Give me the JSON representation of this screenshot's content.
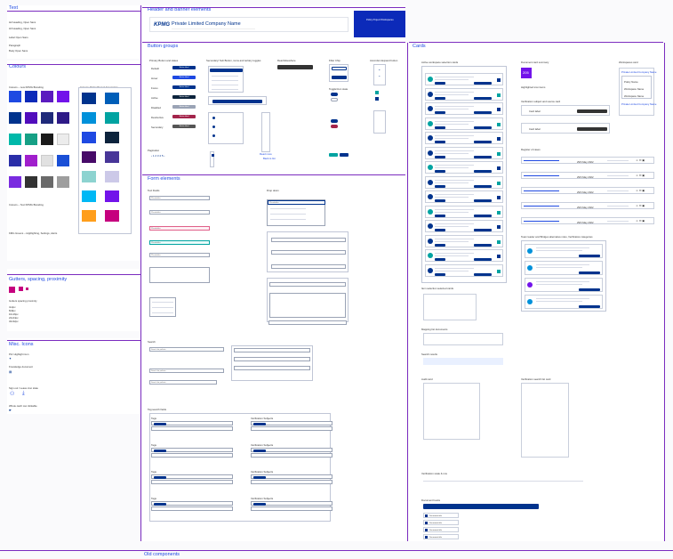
{
  "text_section": {
    "title": "Text",
    "lines": [
      "H2 Heading, Open Sans",
      "H3 Heading, Open Sans",
      "Label Open Sans",
      "Paragraph",
      "Body Open Sans"
    ]
  },
  "colours_section": {
    "title": "Colours",
    "label_kpmg": "Colours – new KPMG Branding",
    "label_text": "Colours – Text KPMG Branding",
    "label_green": "KMG Greens – Highlighting, Settings, Alerts",
    "label_policy": "Colours: Policy Project App Colors",
    "swatches_a": [
      "#1e49e2",
      "#0c2ab9",
      "#5b1bbf",
      "#7213ea",
      "#00338d",
      "#510dbc",
      "#1f2a7a",
      "#2e1a87",
      "#00b8a9",
      "#16a085",
      "#1a1a1a",
      "#ececec",
      "#2a2ea8",
      "#a01fcc",
      "#e1e1e1",
      "#1a4fd6",
      "#7a2be0",
      "#333333",
      "#6a6a6a",
      "#9e9e9e"
    ],
    "swatches_b": [
      "#00338d",
      "#005eb8",
      "#0091da",
      "#00a3a1",
      "#1e49e2",
      "#0c233c",
      "#470a68",
      "#483698",
      "#8dd3d0",
      "#ccc9e8",
      "#00b8f5",
      "#7213ea",
      "#ff9e1b",
      "#c6007e"
    ]
  },
  "gutters_section": {
    "title": "Gutters, spacing, proximity",
    "label": "Gutters spacing proximity",
    "values": [
      "4x4px",
      "8x8px",
      "16x16px",
      "24x24px",
      "32x32px"
    ]
  },
  "misc_section": {
    "title": "Misc. Icons",
    "items": [
      "Pin/ Highlight icon",
      "Knowledge document",
      "Sign out / Leave icon state",
      "Whole card/ row clickable"
    ]
  },
  "header_section": {
    "title": "Header and banner elements",
    "logo": "KPMG",
    "company": "Private Limited Company Name",
    "banner": "Policy Project Workspaces"
  },
  "button_section": {
    "title": "Button groups",
    "col1_title": "Primary Button and states",
    "col1_labels": [
      "Button label",
      "Button label",
      "Button label",
      "Button label",
      "Button label",
      "Button label",
      "Button label"
    ],
    "col1_states": [
      "Default",
      "Hover",
      "Focus",
      "Active",
      "Disabled",
      "Destructive",
      "Secondary"
    ],
    "col2_title": "Secondary/ Sub Button, icons and tertiary toggles",
    "col3_title": "Read Elsewhere",
    "col4_title": "Filter Chip",
    "col5_title": "Accordion Expand button",
    "radio_title": "Checkbox/ Radio button",
    "pagination": "Pagination",
    "toggle_title": "Toggle/Icon state",
    "read_more": "Read more",
    "back": "Back to list"
  },
  "form_section": {
    "title": "Form elements",
    "label_field": "Text Fields",
    "label_dropdown": "Drop down",
    "placeholder": "Placeholder",
    "label_search": "Search",
    "search_placeholder": "Search for policies",
    "search_results": "Search results",
    "tag_title": "Tag search fields",
    "tag_labels": [
      "Tags",
      "Verification Subjects"
    ]
  },
  "cards_section": {
    "title": "Cards",
    "col1_title": "Active workspace selection cards",
    "col2_title": "Document card summary",
    "col3_title": "Workspaces card",
    "workspaces_list": [
      "Private Limited Company Name",
      "Policy Name",
      "Workspace Name",
      "Workspace Name"
    ],
    "number_badge": "205",
    "card_label": "Card label",
    "card_names": [
      "Card Name",
      "Card Name"
    ],
    "item_labels": [
      "Document name",
      "Document name",
      "Document name",
      "Document name"
    ],
    "highlight_label": "Highlighted icon items",
    "verify_label": "Verification subject and source card",
    "table_title": "Register of cases",
    "table_dates": [
      "29th May 2022",
      "29th May 2022",
      "29th May 2022"
    ],
    "people_label": "Team leader and Bridges alternative roles, Verification categories",
    "left_sub": "Item selection selected cards",
    "mapping_label": "Mapping list documents",
    "search_result_label": "Search results",
    "audit_label": "Audit card",
    "verify_tools": "Verification search list card",
    "timeline_label": "Verification scale & row",
    "doc_list_label": "Document books",
    "doc_items": [
      "Document title",
      "Document title",
      "Document title",
      "Document title"
    ]
  },
  "footer": {
    "title": "Old components"
  },
  "colors": {
    "accent": "#1e49e2",
    "rule": "#7b2cbf",
    "navy": "#00338d",
    "teal": "#00a3a1",
    "purple": "#7213ea",
    "pink": "#c6007e"
  }
}
